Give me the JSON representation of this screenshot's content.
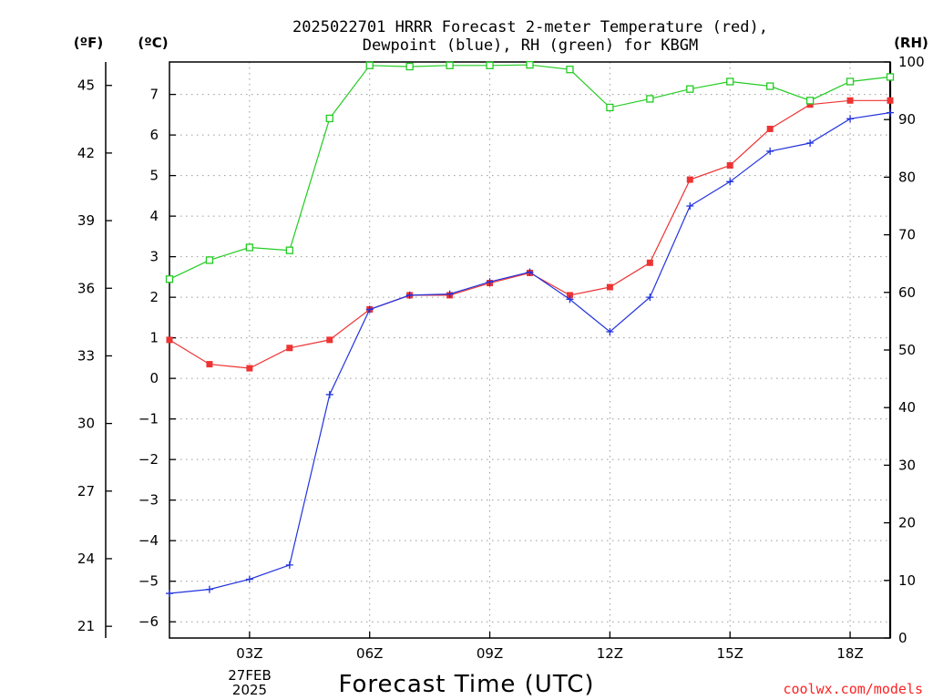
{
  "title_line1": "2025022701 HRRR Forecast 2-meter Temperature (red),",
  "title_line2": "Dewpoint (blue), RH (green) for KBGM",
  "unit_f": "(ºF)",
  "unit_c": "(ºC)",
  "unit_rh": "(RH)",
  "x_title": "Forecast Time (UTC)",
  "credit": "coolwx.com/models",
  "date_label_day": "27FEB",
  "date_label_year": "2025",
  "colors": {
    "temperature": "#ee3333",
    "dewpoint": "#2233dd",
    "rh": "#22cc22"
  },
  "chart_data": {
    "type": "line",
    "x_unit": "hour UTC, 27 Feb 2025",
    "x": [
      1,
      2,
      3,
      4,
      5,
      6,
      7,
      8,
      9,
      10,
      11,
      12,
      13,
      14,
      15,
      16,
      17,
      18,
      19
    ],
    "xlim": [
      1,
      19
    ],
    "x_ticks": [
      3,
      6,
      9,
      12,
      15,
      18
    ],
    "x_tick_labels": [
      "03Z",
      "06Z",
      "09Z",
      "12Z",
      "15Z",
      "18Z"
    ],
    "series": [
      {
        "name": "Temperature",
        "axis": "celsius",
        "marker": "filled-square",
        "values": [
          0.95,
          0.35,
          0.25,
          0.75,
          0.95,
          1.7,
          2.05,
          2.05,
          2.35,
          2.6,
          2.05,
          2.25,
          2.85,
          4.9,
          5.25,
          6.15,
          6.75,
          6.85,
          6.85
        ]
      },
      {
        "name": "Dewpoint",
        "axis": "celsius",
        "marker": "plus",
        "values": [
          -5.3,
          -5.2,
          -4.95,
          -4.6,
          -0.4,
          1.7,
          2.05,
          2.08,
          2.38,
          2.62,
          1.95,
          1.15,
          2.0,
          4.25,
          4.85,
          5.6,
          5.8,
          6.4,
          6.55
        ]
      },
      {
        "name": "RH",
        "axis": "rh",
        "marker": "open-square",
        "values": [
          62.3,
          65.6,
          67.8,
          67.3,
          90.2,
          99.4,
          99.2,
          99.4,
          99.4,
          99.5,
          98.7,
          92.1,
          93.6,
          95.3,
          96.6,
          95.8,
          93.3,
          96.6,
          97.4
        ]
      }
    ],
    "celsius_axis": {
      "range": [
        -6.4,
        7.8
      ],
      "ticks": [
        -6,
        -5,
        -4,
        -3,
        -2,
        -1,
        0,
        1,
        2,
        3,
        4,
        5,
        6,
        7
      ]
    },
    "fahrenheit_axis": {
      "ticks": [
        21,
        24,
        27,
        30,
        33,
        36,
        39,
        42,
        45
      ]
    },
    "rh_axis": {
      "range": [
        0,
        100
      ],
      "ticks": [
        0,
        10,
        20,
        30,
        40,
        50,
        60,
        70,
        80,
        90,
        100
      ]
    },
    "grid": true
  }
}
